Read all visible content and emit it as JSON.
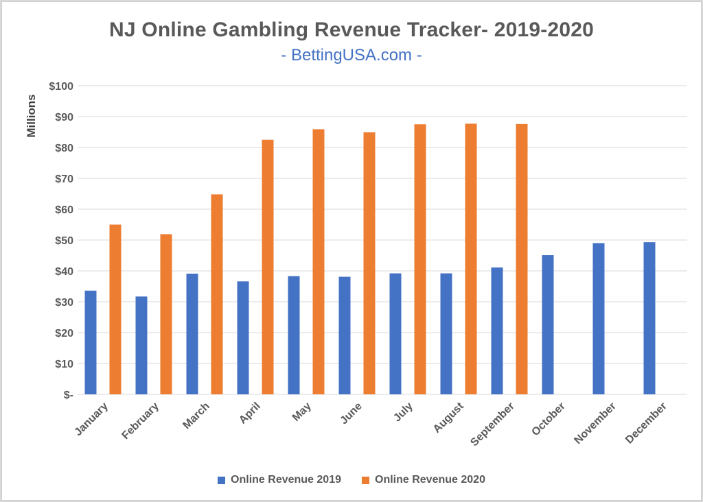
{
  "colors": {
    "series_2019": "#4472c4",
    "series_2020": "#ed7d31",
    "grid": "#d9d9d9",
    "text": "#595959"
  },
  "chart_data": {
    "type": "bar",
    "title": "NJ Online Gambling Revenue Tracker- 2019-2020",
    "subtitle": "- BettingUSA.com -",
    "xlabel": "",
    "ylabel": "Millions",
    "ylim": [
      0,
      100
    ],
    "ytick_labels": [
      "$-",
      "$10",
      "$20",
      "$30",
      "$40",
      "$50",
      "$60",
      "$70",
      "$80",
      "$90",
      "$100"
    ],
    "grid": true,
    "legend_position": "bottom",
    "categories": [
      "January",
      "February",
      "March",
      "April",
      "May",
      "June",
      "July",
      "August",
      "September",
      "October",
      "November",
      "December"
    ],
    "series": [
      {
        "name": "Online Revenue 2019",
        "values": [
          33.6,
          31.7,
          39.1,
          36.6,
          38.3,
          38.1,
          39.2,
          39.2,
          41.1,
          45.1,
          49.0,
          49.3
        ]
      },
      {
        "name": "Online Revenue 2020",
        "values": [
          55.0,
          51.9,
          64.8,
          82.5,
          85.9,
          84.9,
          87.5,
          87.7,
          87.6,
          null,
          null,
          null
        ]
      }
    ]
  }
}
